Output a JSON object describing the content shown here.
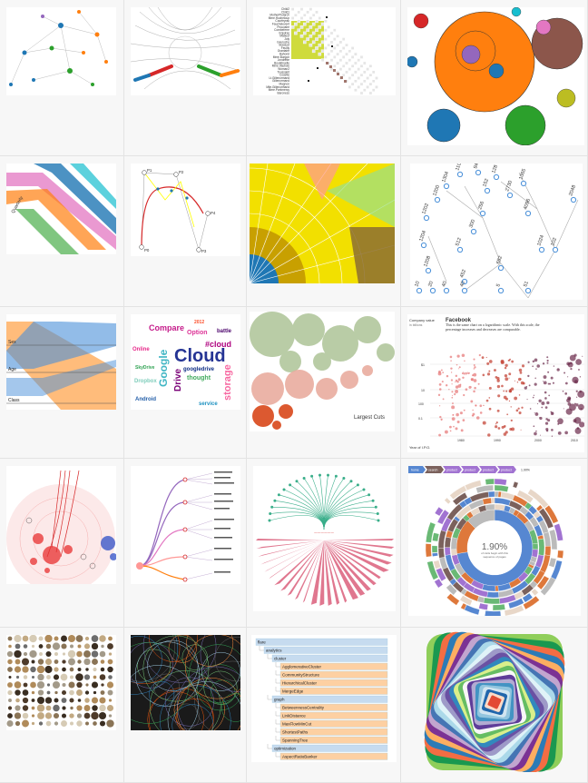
{
  "gallery": {
    "rows": [
      [
        {
          "name": "network-graph-thumbnail"
        },
        {
          "name": "hierarchical-edge-bundling-thumbnail"
        },
        {
          "name": "co-occurrence-matrix-thumbnail",
          "labels": [
            "Child2",
            "Child1",
            "MotherPlutarch",
            "Mme.Hucheloup",
            "Courfeyrac",
            "Fauchelevent",
            "Prouvaire",
            "Combeferre",
            "Enjolras",
            "Mabeuf",
            "Joly",
            "Gavroche",
            "Bossuet",
            "Feuilly",
            "Grantaire",
            "Bahorel",
            "Mme.Burgon",
            "Jondrette",
            "Boulatruelle",
            "Mme.Vaubois",
            "Woman2",
            "Toussaint",
            "Cosette",
            "Lt.Gillenormand",
            "Gillenormand",
            "Magnon",
            "Mlle.Gillenormand",
            "Mme.Pontmercy",
            "Baroness"
          ]
        },
        {
          "name": "zoomable-circle-packing-thumbnail"
        }
      ],
      [
        {
          "name": "sankey-chord-thumbnail",
          "labels": [
            "Quarterly"
          ]
        },
        {
          "name": "bezier-curve-thumbnail",
          "labels": [
            "P0",
            "P1",
            "P2",
            "P3",
            "P4"
          ]
        },
        {
          "name": "sunburst-partition-thumbnail"
        },
        {
          "name": "collatz-tree-thumbnail",
          "labels": [
            "1208",
            "1204",
            "1202",
            "1200",
            "1304",
            "1108",
            "9460",
            "4096",
            "2730",
            "2048",
            "1365",
            "1024",
            "682",
            "452",
            "512",
            "300",
            "256",
            "152",
            "128",
            "102",
            "51",
            "40",
            "20",
            "40",
            "10",
            "5"
          ]
        }
      ],
      [
        {
          "name": "parallel-sets-thumbnail",
          "labels": [
            "Sex",
            "Age",
            "Class"
          ]
        },
        {
          "name": "word-cloud-thumbnail",
          "labels": [
            "Cloud",
            "Google",
            "storage",
            "Drive",
            "Compare",
            "Option",
            "Android",
            "thought",
            "googledrive",
            "#cloud",
            "battle",
            "service",
            "Online",
            "SkyDrive",
            "Dropbox",
            "2012"
          ]
        },
        {
          "name": "budget-bubbles-thumbnail",
          "labels": [
            "Largest Cuts"
          ]
        },
        {
          "name": "ipo-scatter-thumbnail",
          "labels": [
            "Company value",
            "in billions",
            "Facebook",
            "This is the same chart on a logarithmic scale. With this scale, the percentage increases and decreases are comparable.",
            "Apple",
            "$1",
            "10",
            "100",
            "0.1",
            "Year of I.P.O.",
            "1980",
            "1990",
            "2000",
            "2010"
          ]
        }
      ],
      [
        {
          "name": "radial-network-thumbnail"
        },
        {
          "name": "tree-dendrogram-thumbnail"
        },
        {
          "name": "radial-tree-thumbnail"
        },
        {
          "name": "sequence-sunburst-thumbnail",
          "labels": [
            "home",
            "search",
            "product",
            "product",
            "product",
            "product",
            "1.90%",
            "1.90%",
            "of visits begin with this sequence of pages"
          ]
        }
      ],
      [
        {
          "name": "circle-grid-thumbnail"
        },
        {
          "name": "random-circles-thumbnail"
        },
        {
          "name": "collapsible-indented-tree-thumbnail",
          "labels": [
            "flare",
            "analytics",
            "cluster",
            "AgglomerativeCluster",
            "CommunityStructure",
            "HierarchicalCluster",
            "MergeEdge",
            "graph",
            "BetweennessCentrality",
            "LinkDistance",
            "MaxFlowMinCut",
            "ShortestPaths",
            "SpanningTree",
            "optimization",
            "AspectRatioBanker"
          ]
        },
        {
          "name": "nested-squares-thumbnail"
        }
      ]
    ]
  }
}
